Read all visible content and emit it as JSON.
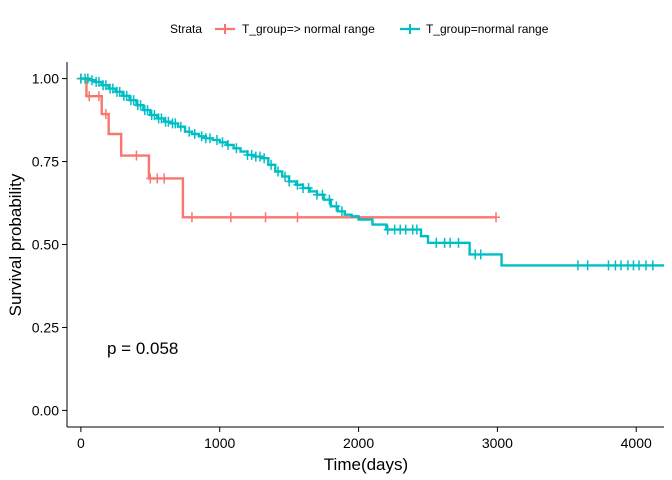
{
  "chart_data": {
    "type": "line",
    "subtype": "kaplan-meier-step",
    "legend": {
      "title": "Strata",
      "position": "top",
      "entries": [
        "T_group=> normal range",
        "T_group=normal range"
      ]
    },
    "xlabel": "Time(days)",
    "ylabel": "Survival probability",
    "xlim": [
      -100,
      4200
    ],
    "ylim": [
      -0.05,
      1.05
    ],
    "x_ticks": [
      0,
      1000,
      2000,
      3000,
      4000
    ],
    "x_tick_labels": [
      "0",
      "1000",
      "2000",
      "3000",
      "4000"
    ],
    "y_ticks": [
      0,
      0.25,
      0.5,
      0.75,
      1.0
    ],
    "y_tick_labels": [
      "0.00",
      "0.25",
      "0.50",
      "0.75",
      "1.00"
    ],
    "grid": false,
    "annotation": "p = 0.058",
    "series": [
      {
        "name": "T_group=> normal range",
        "color": "#F8766D",
        "steps": [
          [
            0,
            1.0
          ],
          [
            40,
            0.947
          ],
          [
            150,
            0.893
          ],
          [
            200,
            0.833
          ],
          [
            290,
            0.768
          ],
          [
            490,
            0.699
          ],
          [
            735,
            0.582
          ],
          [
            2990,
            0.582
          ]
        ],
        "censor_times": [
          0,
          60,
          130,
          180,
          400,
          500,
          550,
          600,
          800,
          1080,
          1330,
          1560,
          2990
        ]
      },
      {
        "name": "T_group=normal range",
        "color": "#00BFC4",
        "steps": [
          [
            0,
            1.0
          ],
          [
            60,
            0.995
          ],
          [
            100,
            0.99
          ],
          [
            150,
            0.98
          ],
          [
            200,
            0.97
          ],
          [
            250,
            0.96
          ],
          [
            300,
            0.948
          ],
          [
            350,
            0.935
          ],
          [
            400,
            0.92
          ],
          [
            450,
            0.905
          ],
          [
            500,
            0.89
          ],
          [
            550,
            0.88
          ],
          [
            600,
            0.87
          ],
          [
            650,
            0.865
          ],
          [
            700,
            0.855
          ],
          [
            750,
            0.84
          ],
          [
            800,
            0.833
          ],
          [
            850,
            0.826
          ],
          [
            900,
            0.82
          ],
          [
            950,
            0.815
          ],
          [
            1000,
            0.808
          ],
          [
            1050,
            0.8
          ],
          [
            1100,
            0.79
          ],
          [
            1150,
            0.78
          ],
          [
            1200,
            0.77
          ],
          [
            1250,
            0.765
          ],
          [
            1300,
            0.76
          ],
          [
            1350,
            0.74
          ],
          [
            1400,
            0.72
          ],
          [
            1450,
            0.705
          ],
          [
            1500,
            0.69
          ],
          [
            1550,
            0.68
          ],
          [
            1600,
            0.67
          ],
          [
            1650,
            0.66
          ],
          [
            1700,
            0.65
          ],
          [
            1750,
            0.635
          ],
          [
            1800,
            0.615
          ],
          [
            1850,
            0.6
          ],
          [
            1900,
            0.59
          ],
          [
            1950,
            0.585
          ],
          [
            2000,
            0.575
          ],
          [
            2100,
            0.56
          ],
          [
            2200,
            0.545
          ],
          [
            2450,
            0.525
          ],
          [
            2500,
            0.505
          ],
          [
            2800,
            0.47
          ],
          [
            3030,
            0.437
          ],
          [
            4200,
            0.437
          ]
        ],
        "censor_times": [
          0,
          30,
          50,
          80,
          110,
          130,
          160,
          180,
          210,
          230,
          260,
          280,
          310,
          330,
          360,
          380,
          410,
          430,
          460,
          480,
          510,
          530,
          560,
          580,
          610,
          630,
          660,
          680,
          720,
          780,
          820,
          870,
          900,
          930,
          980,
          1020,
          1060,
          1120,
          1200,
          1230,
          1260,
          1290,
          1320,
          1370,
          1420,
          1470,
          1500,
          1560,
          1600,
          1640,
          1700,
          1740,
          1790,
          1840,
          1880,
          2210,
          2260,
          2300,
          2340,
          2390,
          2420,
          2560,
          2620,
          2660,
          2720,
          2840,
          2880,
          3580,
          3650,
          3800,
          3850,
          3890,
          3940,
          3980,
          4020,
          4070,
          4120
        ]
      }
    ]
  }
}
